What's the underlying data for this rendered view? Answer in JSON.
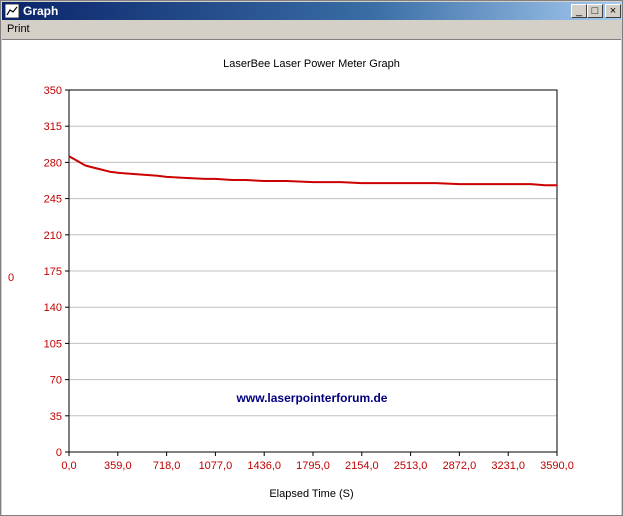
{
  "window": {
    "title": "Graph",
    "buttons": {
      "minimize": "_",
      "maximize": "□",
      "close": "×"
    }
  },
  "menu": {
    "print_label": "Print"
  },
  "watermark": "www.laserpointerforum.de",
  "colors": {
    "series": "#cc0000",
    "tick_text": "#c00000",
    "gridline": "#c0c0c0"
  },
  "chart_data": {
    "type": "line",
    "title": "LaserBee Laser Power Meter Graph",
    "xlabel": "Elapsed Time (S)",
    "ylabel": "0",
    "xlim": [
      0,
      3590
    ],
    "ylim": [
      0,
      350
    ],
    "yticks": [
      "0",
      "35",
      "70",
      "105",
      "140",
      "175",
      "210",
      "245",
      "280",
      "315",
      "350"
    ],
    "xticks": [
      "0,0",
      "359,0",
      "718,0",
      "1077,0",
      "1436,0",
      "1795,0",
      "2154,0",
      "2513,0",
      "2872,0",
      "3231,0",
      "3590,0"
    ],
    "grid": "horizontal",
    "series": [
      {
        "x": [
          0,
          40,
          80,
          120,
          180,
          240,
          300,
          359,
          450,
          550,
          650,
          718,
          850,
          1000,
          1077,
          1200,
          1300,
          1436,
          1600,
          1795,
          1900,
          2000,
          2154,
          2300,
          2513,
          2700,
          2872,
          3000,
          3231,
          3400,
          3500,
          3590
        ],
        "y": [
          286,
          283,
          280,
          277,
          275,
          273,
          271,
          270,
          269,
          268,
          267,
          266,
          265,
          264,
          264,
          263,
          263,
          262,
          262,
          261,
          261,
          261,
          260,
          260,
          260,
          260,
          259,
          259,
          259,
          259,
          258,
          258
        ]
      }
    ]
  }
}
